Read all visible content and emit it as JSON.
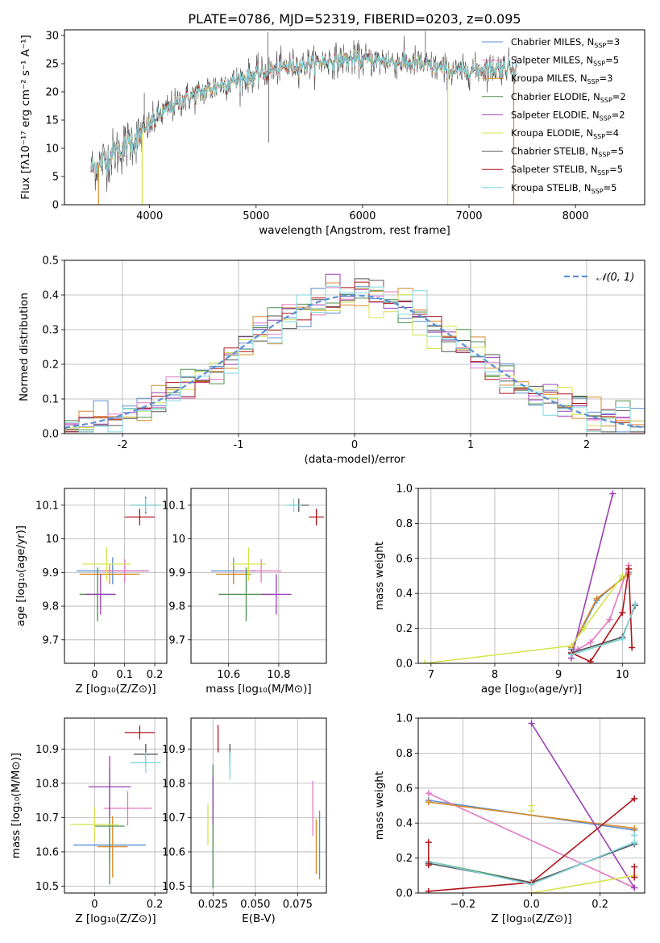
{
  "figure": {
    "title": "PLATE=0786, MJD=52319, FIBERID=0203, z=0.095"
  },
  "colors": {
    "Chabrier MILES": "#5b8fd6",
    "Salpeter MILES": "#e377c2",
    "Kroupa MILES": "#d98a28",
    "Chabrier ELODIE": "#4f8f4f",
    "Salpeter ELODIE": "#9b3fb5",
    "Kroupa ELODIE": "#d4e34a",
    "Chabrier STELIB": "#555555",
    "Salpeter STELIB": "#b0141a",
    "Kroupa STELIB": "#7fd6dc",
    "normal": "#5b8fd6",
    "grid": "#b0b0b0"
  },
  "chart_data": [
    {
      "id": "spectrum",
      "type": "line",
      "xlabel": "wavelength [Angstrom, rest frame]",
      "ylabel": "Flux [fλ10⁻¹⁷ erg cm⁻² s⁻¹ A⁻¹]",
      "xlim": [
        3200,
        8650
      ],
      "ylim": [
        0,
        31
      ],
      "xticks": [
        4000,
        5000,
        6000,
        7000,
        8000
      ],
      "yticks": [
        0,
        5,
        10,
        15,
        20,
        25,
        30
      ],
      "grid": false,
      "legend_position": "top-right",
      "legend": [
        {
          "name": "Chabrier MILES, N",
          "sub": "SSP",
          "suffix": "=3",
          "color_key": "Chabrier MILES"
        },
        {
          "name": "Salpeter MILES, N",
          "sub": "SSP",
          "suffix": "=5",
          "color_key": "Salpeter MILES"
        },
        {
          "name": "Kroupa MILES, N",
          "sub": "SSP",
          "suffix": "=3",
          "color_key": "Kroupa MILES"
        },
        {
          "name": "Chabrier ELODIE, N",
          "sub": "SSP",
          "suffix": "=2",
          "color_key": "Chabrier ELODIE"
        },
        {
          "name": "Salpeter ELODIE, N",
          "sub": "SSP",
          "suffix": "=2",
          "color_key": "Salpeter ELODIE"
        },
        {
          "name": "Kroupa ELODIE, N",
          "sub": "SSP",
          "suffix": "=4",
          "color_key": "Kroupa ELODIE"
        },
        {
          "name": "Chabrier STELIB, N",
          "sub": "SSP",
          "suffix": "=5",
          "color_key": "Chabrier STELIB"
        },
        {
          "name": "Salpeter STELIB, N",
          "sub": "SSP",
          "suffix": "=5",
          "color_key": "Salpeter STELIB"
        },
        {
          "name": "Kroupa STELIB, N",
          "sub": "SSP",
          "suffix": "=5",
          "color_key": "Kroupa STELIB"
        }
      ],
      "continuum": [
        [
          3450,
          6.5
        ],
        [
          3600,
          8
        ],
        [
          3800,
          11
        ],
        [
          3900,
          12
        ],
        [
          4000,
          14
        ],
        [
          4100,
          16
        ],
        [
          4300,
          18.5
        ],
        [
          4500,
          20
        ],
        [
          4700,
          21.5
        ],
        [
          4900,
          22.5
        ],
        [
          5100,
          23.5
        ],
        [
          5300,
          24.5
        ],
        [
          5500,
          25
        ],
        [
          5700,
          25.5
        ],
        [
          5900,
          25.8
        ],
        [
          6100,
          25.6
        ],
        [
          6300,
          25.3
        ],
        [
          6500,
          25
        ],
        [
          6700,
          24.3
        ],
        [
          6900,
          23.5
        ],
        [
          7100,
          24
        ],
        [
          7300,
          24.3
        ],
        [
          7450,
          24.5
        ]
      ],
      "spikes": [
        [
          5110,
          30.6
        ],
        [
          5120,
          11.0
        ],
        [
          6590,
          30.8
        ],
        [
          3950,
          19.8
        ]
      ],
      "dropouts": [
        {
          "x": 3520,
          "y": 0,
          "series": "Kroupa MILES"
        },
        {
          "x": 3930,
          "y": 0,
          "series": "Kroupa ELODIE"
        },
        {
          "x": 6800,
          "y": 0,
          "series": "Kroupa ELODIE"
        },
        {
          "x": 7420,
          "y": 0,
          "series": "Kroupa MILES"
        }
      ]
    },
    {
      "id": "residuals",
      "type": "histogram",
      "xlabel": "(data-model)/error",
      "ylabel": "Normed distribution",
      "xlim": [
        -2.5,
        2.5
      ],
      "ylim": [
        0,
        0.5
      ],
      "xticks": [
        -2,
        -1,
        0,
        1,
        2
      ],
      "yticks": [
        0.0,
        0.1,
        0.2,
        0.3,
        0.4,
        0.5
      ],
      "grid": true,
      "legend_position": "top-right",
      "legend_label": "𝒩(0, 1)",
      "bins": 40
    },
    {
      "id": "age_vs_Z",
      "type": "errorbar",
      "xlabel": "Z [log₁₀(Z/Z⊙)]",
      "ylabel": "age  [log₁₀(age/yr)]",
      "xlim": [
        -0.1,
        0.24
      ],
      "ylim": [
        9.63,
        10.15
      ],
      "xticks": [
        0.0,
        0.1,
        0.2
      ],
      "yticks": [
        9.7,
        9.8,
        9.9,
        10.0,
        10.1
      ],
      "grid": true,
      "points": [
        {
          "s": "Chabrier MILES",
          "x": 0.06,
          "y": 9.905,
          "xe": 0.12,
          "ye": 0.04
        },
        {
          "s": "Salpeter MILES",
          "x": 0.1,
          "y": 9.905,
          "xe": 0.08,
          "ye": 0.035
        },
        {
          "s": "Kroupa MILES",
          "x": 0.05,
          "y": 9.895,
          "xe": 0.1,
          "ye": 0.03
        },
        {
          "s": "Chabrier ELODIE",
          "x": 0.01,
          "y": 9.835,
          "xe": 0.06,
          "ye": 0.08
        },
        {
          "s": "Salpeter ELODIE",
          "x": 0.02,
          "y": 9.835,
          "xe": 0.05,
          "ye": 0.06
        },
        {
          "s": "Kroupa ELODIE",
          "x": 0.04,
          "y": 9.925,
          "xe": 0.08,
          "ye": 0.05
        },
        {
          "s": "Chabrier STELIB",
          "x": 0.17,
          "y": 10.1,
          "xe": 0.05,
          "ye": 0.025
        },
        {
          "s": "Salpeter STELIB",
          "x": 0.15,
          "y": 10.065,
          "xe": 0.05,
          "ye": 0.025
        },
        {
          "s": "Kroupa STELIB",
          "x": 0.17,
          "y": 10.1,
          "xe": 0.05,
          "ye": 0.02
        }
      ]
    },
    {
      "id": "age_vs_mass",
      "type": "errorbar",
      "xlabel": "mass [log₁₀(M/M⊙)]",
      "ylabel": "",
      "xlim": [
        10.45,
        10.99
      ],
      "ylim": [
        9.63,
        10.15
      ],
      "xticks": [
        10.6,
        10.8
      ],
      "yticks": [
        9.7,
        9.8,
        9.9,
        10.0,
        10.1
      ],
      "grid": true,
      "points": [
        {
          "s": "Chabrier MILES",
          "x": 10.62,
          "y": 9.905,
          "xe": 0.09,
          "ye": 0.04
        },
        {
          "s": "Salpeter MILES",
          "x": 10.73,
          "y": 9.905,
          "xe": 0.08,
          "ye": 0.035
        },
        {
          "s": "Kroupa MILES",
          "x": 10.62,
          "y": 9.895,
          "xe": 0.07,
          "ye": 0.03
        },
        {
          "s": "Chabrier ELODIE",
          "x": 10.67,
          "y": 9.835,
          "xe": 0.11,
          "ye": 0.08
        },
        {
          "s": "Salpeter ELODIE",
          "x": 10.79,
          "y": 9.835,
          "xe": 0.06,
          "ye": 0.06
        },
        {
          "s": "Kroupa ELODIE",
          "x": 10.68,
          "y": 9.925,
          "xe": 0.07,
          "ye": 0.05
        },
        {
          "s": "Chabrier STELIB",
          "x": 10.88,
          "y": 10.1,
          "xe": 0.04,
          "ye": 0.02
        },
        {
          "s": "Salpeter STELIB",
          "x": 10.95,
          "y": 10.065,
          "xe": 0.03,
          "ye": 0.025
        },
        {
          "s": "Kroupa STELIB",
          "x": 10.86,
          "y": 10.1,
          "xe": 0.03,
          "ye": 0.02
        }
      ]
    },
    {
      "id": "weight_vs_age",
      "type": "line",
      "xlabel": "age  [log₁₀(age/yr)]",
      "ylabel": "mass weight",
      "xlim": [
        6.8,
        10.35
      ],
      "ylim": [
        0,
        1
      ],
      "xticks": [
        7,
        8,
        9,
        10
      ],
      "yticks": [
        0.0,
        0.2,
        0.4,
        0.6,
        0.8,
        1.0
      ],
      "grid": true,
      "series": [
        {
          "s": "Chabrier MILES",
          "x": [
            9.2,
            9.6,
            10.1
          ],
          "y": [
            0.08,
            0.36,
            0.52
          ]
        },
        {
          "s": "Salpeter MILES",
          "x": [
            9.2,
            9.3,
            9.5,
            9.8,
            10.1
          ],
          "y": [
            0.05,
            0.08,
            0.12,
            0.25,
            0.56
          ]
        },
        {
          "s": "Kroupa MILES",
          "x": [
            9.2,
            9.6,
            10.1
          ],
          "y": [
            0.09,
            0.37,
            0.51
          ]
        },
        {
          "s": "Chabrier ELODIE",
          "x": [
            9.2,
            10.0
          ],
          "y": [
            0.05,
            0.14
          ]
        },
        {
          "s": "Salpeter ELODIE",
          "x": [
            9.2,
            9.85
          ],
          "y": [
            0.03,
            0.97
          ]
        },
        {
          "s": "Kroupa ELODIE",
          "x": [
            6.9,
            9.2,
            9.4,
            10.0
          ],
          "y": [
            0.0,
            0.1,
            0.2,
            0.5
          ]
        },
        {
          "s": "Chabrier STELIB",
          "x": [
            9.2,
            10.0,
            10.2
          ],
          "y": [
            0.06,
            0.15,
            0.33
          ]
        },
        {
          "s": "Salpeter STELIB",
          "x": [
            9.2,
            9.5,
            10.0,
            10.1,
            10.15
          ],
          "y": [
            0.06,
            0.01,
            0.29,
            0.54,
            0.09
          ]
        },
        {
          "s": "Kroupa STELIB",
          "x": [
            9.2,
            10.0,
            10.2
          ],
          "y": [
            0.05,
            0.14,
            0.34
          ]
        }
      ]
    },
    {
      "id": "mass_vs_Z",
      "type": "errorbar",
      "xlabel": "Z [log₁₀(Z/Z⊙)]",
      "ylabel": "mass [log₁₀(M/M⊙)]",
      "xlim": [
        -0.1,
        0.24
      ],
      "ylim": [
        10.48,
        10.99
      ],
      "xticks": [
        0.0,
        0.2
      ],
      "yticks": [
        10.5,
        10.6,
        10.7,
        10.8,
        10.9
      ],
      "grid": true,
      "points": [
        {
          "s": "Chabrier MILES",
          "x": 0.05,
          "y": 10.62,
          "xe": 0.12,
          "ye": 0.05
        },
        {
          "s": "Salpeter MILES",
          "x": 0.11,
          "y": 10.727,
          "xe": 0.08,
          "ye": 0.05
        },
        {
          "s": "Kroupa MILES",
          "x": 0.06,
          "y": 10.615,
          "xe": 0.05,
          "ye": 0.09
        },
        {
          "s": "Chabrier ELODIE",
          "x": 0.05,
          "y": 10.675,
          "xe": 0.05,
          "ye": 0.17
        },
        {
          "s": "Salpeter ELODIE",
          "x": 0.05,
          "y": 10.79,
          "xe": 0.07,
          "ye": 0.09
        },
        {
          "s": "Kroupa ELODIE",
          "x": 0.0,
          "y": 10.68,
          "xe": 0.08,
          "ye": 0.05
        },
        {
          "s": "Chabrier STELIB",
          "x": 0.17,
          "y": 10.885,
          "xe": 0.04,
          "ye": 0.03
        },
        {
          "s": "Salpeter STELIB",
          "x": 0.15,
          "y": 10.948,
          "xe": 0.05,
          "ye": 0.02
        },
        {
          "s": "Kroupa STELIB",
          "x": 0.17,
          "y": 10.86,
          "xe": 0.05,
          "ye": 0.03
        }
      ]
    },
    {
      "id": "mass_vs_ebv",
      "type": "errorbar",
      "xlabel": "E(B-V)",
      "ylabel": "",
      "xlim": [
        0.012,
        0.092
      ],
      "ylim": [
        10.48,
        10.99
      ],
      "xticks": [
        0.025,
        0.05,
        0.075
      ],
      "xticklabels": [
        "0.025",
        "0.050",
        "0.075"
      ],
      "yticks": [
        10.5,
        10.6,
        10.7,
        10.8,
        10.9
      ],
      "grid": true,
      "points": [
        {
          "s": "Chabrier MILES",
          "x": 0.088,
          "y": 10.62,
          "xe": 0,
          "ye": 0.1
        },
        {
          "s": "Salpeter MILES",
          "x": 0.084,
          "y": 10.727,
          "xe": 0,
          "ye": 0.08
        },
        {
          "s": "Kroupa MILES",
          "x": 0.086,
          "y": 10.615,
          "xe": 0,
          "ye": 0.08
        },
        {
          "s": "Chabrier ELODIE",
          "x": 0.025,
          "y": 10.675,
          "xe": 0,
          "ye": 0.18
        },
        {
          "s": "Salpeter ELODIE",
          "x": 0.025,
          "y": 10.75,
          "xe": 0,
          "ye": 0.07
        },
        {
          "s": "Kroupa ELODIE",
          "x": 0.022,
          "y": 10.68,
          "xe": 0,
          "ye": 0.06
        },
        {
          "s": "Chabrier STELIB",
          "x": 0.035,
          "y": 10.885,
          "xe": 0,
          "ye": 0.03
        },
        {
          "s": "Salpeter STELIB",
          "x": 0.028,
          "y": 10.93,
          "xe": 0,
          "ye": 0.04
        },
        {
          "s": "Kroupa STELIB",
          "x": 0.035,
          "y": 10.85,
          "xe": 0,
          "ye": 0.04
        }
      ]
    },
    {
      "id": "weight_vs_Z",
      "type": "line",
      "xlabel": "Z [log₁₀(Z/Z⊙)]",
      "ylabel": "mass weight",
      "xlim": [
        -0.33,
        0.33
      ],
      "ylim": [
        0,
        1
      ],
      "xticks": [
        -0.2,
        0.0,
        0.2
      ],
      "xticklabels": [
        "−0.2",
        "0.0",
        "0.2"
      ],
      "yticks": [
        0.0,
        0.2,
        0.4,
        0.6,
        0.8,
        1.0
      ],
      "grid": true,
      "series": [
        {
          "s": "Chabrier MILES",
          "x": [
            -0.3,
            0.3
          ],
          "y": [
            0.53,
            0.36
          ]
        },
        {
          "s": "Salpeter MILES",
          "x": [
            -0.3,
            0.3
          ],
          "y": [
            0.57,
            0.03
          ]
        },
        {
          "s": "Kroupa MILES",
          "x": [
            -0.3,
            0.3
          ],
          "y": [
            0.52,
            0.37
          ]
        },
        {
          "s": "Chabrier ELODIE",
          "x": [
            -0.3,
            0.0
          ],
          "y": [
            0.18,
            0.06
          ]
        },
        {
          "s": "Salpeter ELODIE",
          "x": [
            0.0,
            0.3
          ],
          "y": [
            0.97,
            0.03
          ]
        },
        {
          "s": "Kroupa ELODIE",
          "x": [
            0.0,
            0.3
          ],
          "y": [
            0.0,
            0.1
          ]
        },
        {
          "s": "Chabrier STELIB",
          "x": [
            -0.3,
            0.0,
            0.3
          ],
          "y": [
            0.17,
            0.06,
            0.28
          ]
        },
        {
          "s": "Salpeter STELIB",
          "x": [
            -0.3,
            0.0,
            0.3
          ],
          "y": [
            0.01,
            0.06,
            0.54
          ]
        },
        {
          "s": "Kroupa STELIB",
          "x": [
            -0.3,
            0.0,
            0.3
          ],
          "y": [
            0.18,
            0.05,
            0.29
          ]
        }
      ],
      "extra_markers": [
        {
          "s": "Salpeter STELIB",
          "x": -0.3,
          "y": [
            0.29,
            0.16
          ]
        },
        {
          "s": "Kroupa ELODIE",
          "x": 0.0,
          "y": [
            0.5,
            0.47
          ]
        },
        {
          "s": "Salpeter STELIB",
          "x": 0.3,
          "y": [
            0.09,
            0.15
          ]
        },
        {
          "s": "Kroupa STELIB",
          "x": 0.3,
          "y": [
            0.33
          ]
        }
      ]
    }
  ]
}
